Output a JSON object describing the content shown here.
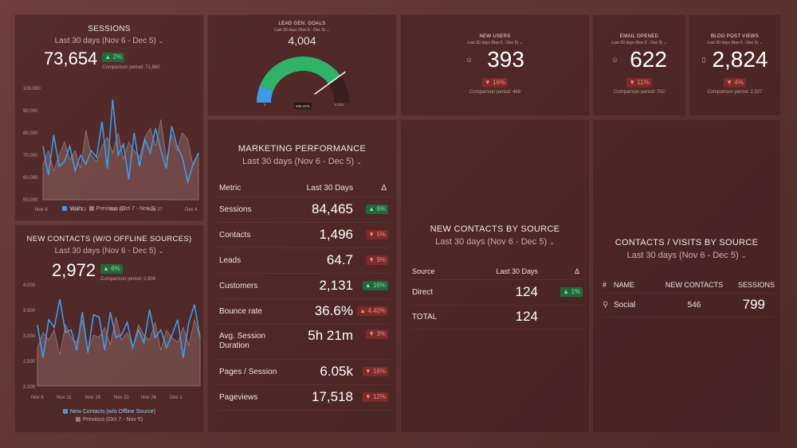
{
  "sessions": {
    "title": "SESSIONS",
    "range": "Last 30 days (Nov 6 - Dec 5)",
    "value": "73,654",
    "change": "▲ 2%",
    "comparison": "Comparison period: 71,880",
    "y_ticks": [
      "100,000",
      "90,000",
      "80,000",
      "70,000",
      "60,000",
      "50,000"
    ],
    "x_ticks": [
      "Nov 6",
      "Nov 13",
      "Nov 20",
      "Nov 27",
      "Dec 4"
    ],
    "legend_current": "Visits",
    "legend_previous": "Previous (Oct 7 - Nov 5)"
  },
  "new_contacts": {
    "title": "NEW CONTACTS (W/O OFFLINE SOURCES)",
    "range": "Last 30 days (Nov 6 - Dec 5)",
    "value": "2,972",
    "change": "▲ 6%",
    "comparison": "Comparison period: 2,808",
    "y_ticks": [
      "4,000",
      "3,500",
      "3,000",
      "2,500",
      "2,000"
    ],
    "x_ticks": [
      "Nov 6",
      "Nov 11",
      "Nov 16",
      "Nov 21",
      "Nov 26",
      "Dec 1"
    ],
    "legend_current": "New Contacts (w/o Offline Source)",
    "legend_previous": "Previous (Oct 7 - Nov 5)"
  },
  "lead_gen": {
    "title": "LEAD GEN. GOALS",
    "range": "Last 30 days (Nov 6 - Dec 5)",
    "value": "4,004",
    "gauge_min": "0",
    "gauge_max": "5,000",
    "gauge_target": "658.25%",
    "fill_fraction": 0.8
  },
  "new_users": {
    "title": "NEW USERS",
    "range": "Last 30 days (Nov 6 - Dec 5)",
    "value": "393",
    "change": "▼ 16%",
    "comparison": "Comparison period: 469"
  },
  "email_opened": {
    "title": "EMAIL OPENED",
    "range": "Last 30 days (Nov 6 - Dec 5)",
    "value": "622",
    "change": "▼ 11%",
    "comparison": "Comparison period: 702"
  },
  "blog_views": {
    "title": "BLOG POST VIEWS",
    "range": "Last 30 days (Nov 6 - Dec 5)",
    "value": "2,824",
    "change": "▼ 4%",
    "comparison": "Comparison period: 2,927"
  },
  "marketing": {
    "title": "MARKETING PERFORMANCE",
    "range": "Last 30 days (Nov 6 - Dec 5)",
    "col_metric": "Metric",
    "col_period": "Last 30 Days",
    "col_delta": "Δ",
    "rows": [
      {
        "metric": "Sessions",
        "value": "84,465",
        "change": "▲ 6%",
        "dir": "up"
      },
      {
        "metric": "Contacts",
        "value": "1,496",
        "change": "▼ 5%",
        "dir": "down"
      },
      {
        "metric": "Leads",
        "value": "64.7",
        "change": "▼ 9%",
        "dir": "down"
      },
      {
        "metric": "Customers",
        "value": "2,131",
        "change": "▲ 16%",
        "dir": "up"
      },
      {
        "metric": "Bounce rate",
        "value": "36.6%",
        "change": "▲ 4.40%",
        "dir": "down"
      },
      {
        "metric": "Avg. Session Duration",
        "value": "5h 21m",
        "change": "▼ 3%",
        "dir": "down"
      },
      {
        "metric": "Pages / Session",
        "value": "6.05k",
        "change": "▼ 16%",
        "dir": "down"
      },
      {
        "metric": "Pageviews",
        "value": "17,518",
        "change": "▼ 12%",
        "dir": "down"
      }
    ]
  },
  "contacts_by_source": {
    "title": "NEW CONTACTS BY SOURCE",
    "range": "Last 30 days (Nov 6 - Dec 5)",
    "col_source": "Source",
    "col_period": "Last 30 Days",
    "col_delta": "Δ",
    "row_source": "Direct",
    "row_value": "124",
    "row_change": "▲ 1%",
    "total_label": "TOTAL",
    "total_value": "124"
  },
  "visits_by_source": {
    "title": "CONTACTS / VISITS BY SOURCE",
    "range": "Last 30 days (Nov 6 - Dec 5)",
    "col_hash": "#",
    "col_name": "NAME",
    "col_contacts": "NEW CONTACTS",
    "col_sessions": "SESSIONS",
    "row_name": "Social",
    "row_contacts": "546",
    "row_sessions": "799"
  },
  "chart_data": [
    {
      "type": "line",
      "title": "SESSIONS",
      "ylim": [
        50000,
        100000
      ],
      "x": [
        "Nov 6",
        "Nov 7",
        "Nov 8",
        "Nov 9",
        "Nov 10",
        "Nov 11",
        "Nov 12",
        "Nov 13",
        "Nov 14",
        "Nov 15",
        "Nov 16",
        "Nov 17",
        "Nov 18",
        "Nov 19",
        "Nov 20",
        "Nov 21",
        "Nov 22",
        "Nov 23",
        "Nov 24",
        "Nov 25",
        "Nov 26",
        "Nov 27",
        "Nov 28",
        "Nov 29",
        "Nov 30",
        "Dec 1",
        "Dec 2",
        "Dec 3",
        "Dec 4",
        "Dec 5"
      ],
      "series": [
        {
          "name": "Visits",
          "values": [
            74000,
            61000,
            79000,
            65000,
            67000,
            74000,
            63000,
            70000,
            66000,
            72000,
            69000,
            85000,
            64000,
            95000,
            70000,
            75000,
            59000,
            80000,
            65000,
            77000,
            71000,
            82000,
            72000,
            64000,
            83000,
            74000,
            69000,
            58000,
            66000,
            71000
          ]
        },
        {
          "name": "Previous (Oct 7 - Nov 5)",
          "values": [
            66000,
            72000,
            63000,
            70000,
            76000,
            68000,
            72000,
            64000,
            81000,
            70000,
            67000,
            74000,
            78000,
            71000,
            80000,
            68000,
            76000,
            72000,
            69000,
            78000,
            82000,
            74000,
            86000,
            68000,
            79000,
            72000,
            80000,
            77000,
            65000,
            71000
          ]
        }
      ]
    },
    {
      "type": "line",
      "title": "NEW CONTACTS (W/O OFFLINE SOURCES)",
      "ylim": [
        2000,
        4000
      ],
      "x": [
        "Nov 6",
        "Nov 7",
        "Nov 8",
        "Nov 9",
        "Nov 10",
        "Nov 11",
        "Nov 12",
        "Nov 13",
        "Nov 14",
        "Nov 15",
        "Nov 16",
        "Nov 17",
        "Nov 18",
        "Nov 19",
        "Nov 20",
        "Nov 21",
        "Nov 22",
        "Nov 23",
        "Nov 24",
        "Nov 25",
        "Nov 26",
        "Nov 27",
        "Nov 28",
        "Nov 29",
        "Nov 30",
        "Dec 1",
        "Dec 2",
        "Dec 3",
        "Dec 4",
        "Dec 5"
      ],
      "series": [
        {
          "name": "New Contacts (w/o Offline Source)",
          "values": [
            3200,
            2550,
            3300,
            3150,
            3700,
            3050,
            3100,
            2700,
            3450,
            2650,
            3400,
            3350,
            2700,
            3450,
            2950,
            3000,
            3250,
            2750,
            3100,
            2850,
            3500,
            2950,
            3100,
            2750,
            3000,
            3300,
            2550,
            3250,
            3600,
            2950
          ]
        },
        {
          "name": "Previous (Oct 7 - Nov 5)",
          "values": [
            2750,
            3050,
            2900,
            3100,
            2600,
            3200,
            2950,
            2850,
            3300,
            2700,
            3000,
            2950,
            3150,
            2800,
            3350,
            2900,
            3050,
            2750,
            3200,
            3000,
            2900,
            3250,
            2700,
            3100,
            2950,
            2850,
            3150,
            2800,
            3300,
            2950
          ]
        }
      ]
    }
  ]
}
